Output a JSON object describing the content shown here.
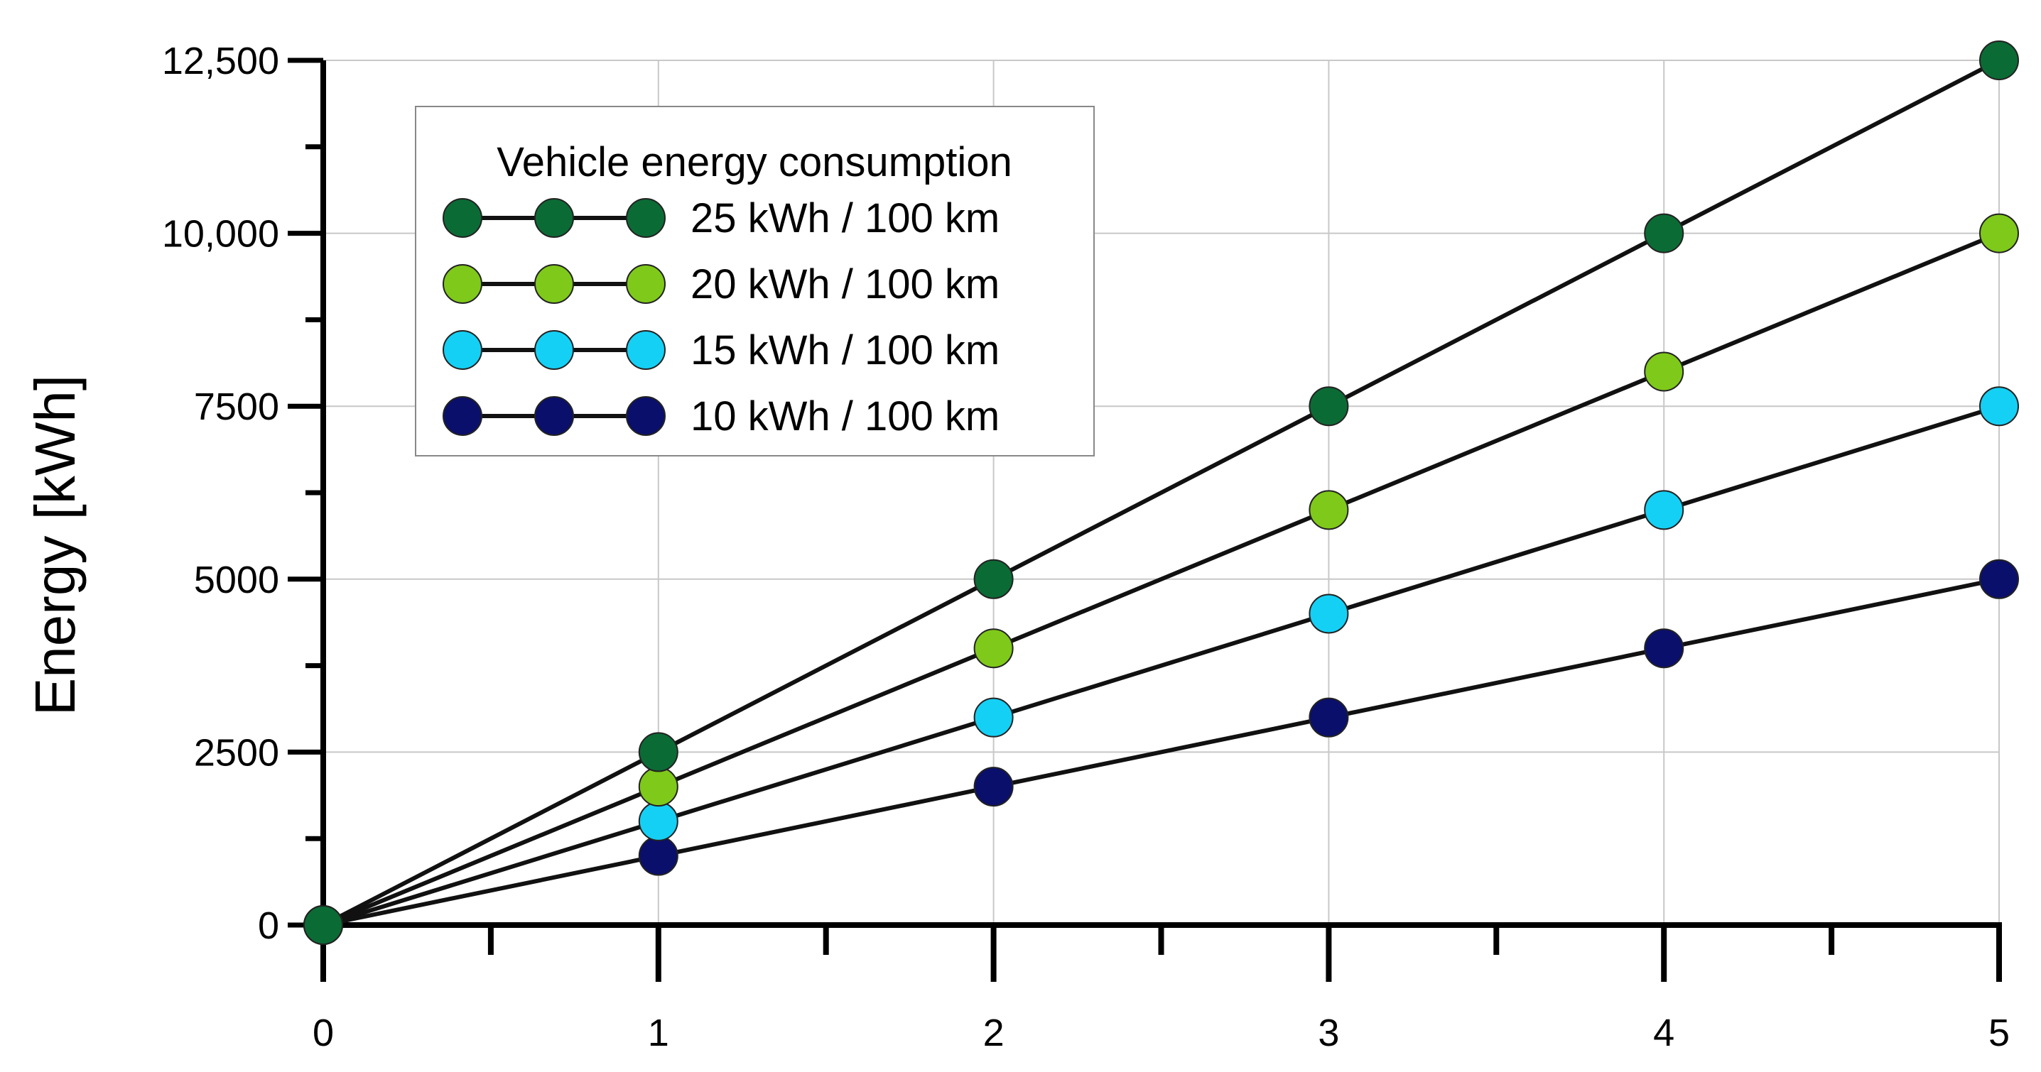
{
  "chart_data": {
    "type": "line",
    "title": "",
    "xlabel": "",
    "ylabel": "Energy [kWh]",
    "x": [
      0,
      1,
      2,
      3,
      4,
      5
    ],
    "xlim": [
      0,
      5
    ],
    "ylim": [
      0,
      12500
    ],
    "x_ticks": [
      "0",
      "1",
      "2",
      "3",
      "4",
      "5"
    ],
    "y_ticks": [
      {
        "value": 0,
        "label": "0"
      },
      {
        "value": 2500,
        "label": "2500"
      },
      {
        "value": 5000,
        "label": "5000"
      },
      {
        "value": 7500,
        "label": "7500"
      },
      {
        "value": 10000,
        "label": "10,000"
      },
      {
        "value": 12500,
        "label": "12,500"
      }
    ],
    "grid": true,
    "legend": {
      "title": "Vehicle energy consumption",
      "placement": "top-left"
    },
    "series": [
      {
        "name": "25 kWh / 100 km",
        "color": "#0b6b35",
        "values": [
          0,
          2500,
          5000,
          7500,
          10000,
          12500
        ]
      },
      {
        "name": "20 kWh / 100 km",
        "color": "#7fc91a",
        "values": [
          0,
          2000,
          4000,
          6000,
          8000,
          10000
        ]
      },
      {
        "name": "15 kWh / 100 km",
        "color": "#14d0f5",
        "values": [
          0,
          1500,
          3000,
          4500,
          6000,
          7500
        ]
      },
      {
        "name": "10 kWh / 100 km",
        "color": "#0a0f6b",
        "values": [
          0,
          1000,
          2000,
          3000,
          4000,
          5000
        ]
      }
    ]
  }
}
